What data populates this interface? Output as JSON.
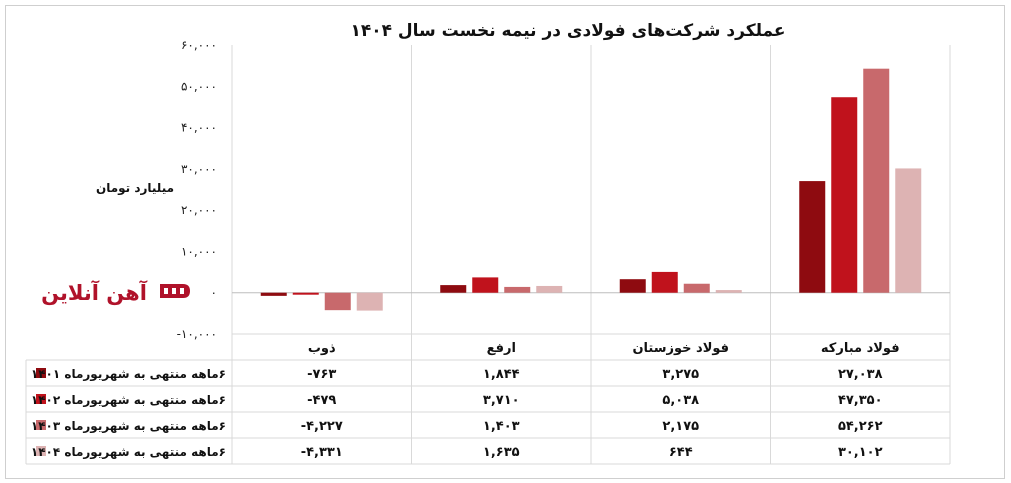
{
  "colors": {
    "series": [
      "#8e0b10",
      "#c0121c",
      "#c8696c",
      "#ddb3b3"
    ],
    "logo": "#b0122a"
  },
  "logo": {
    "text": "آهن آنلاین",
    "icon": "ahan-online-logo-icon"
  },
  "unit_label": "میلیارد تومان",
  "chart_data": {
    "type": "bar",
    "title": "عملکرد شرکت‌های فولادی در نیمه نخست سال ۱۴۰۴",
    "ylabel": "میلیارد تومان",
    "ylim": [
      -10000,
      60000
    ],
    "yticks": [
      -10000,
      0,
      10000,
      20000,
      30000,
      40000,
      50000,
      60000
    ],
    "ytick_labels": [
      "-۱۰,۰۰۰",
      "۰",
      "۱۰,۰۰۰",
      "۲۰,۰۰۰",
      "۳۰,۰۰۰",
      "۴۰,۰۰۰",
      "۵۰,۰۰۰",
      "۶۰,۰۰۰"
    ],
    "grid": true,
    "legend": "table-left",
    "categories": [
      "فولاد مبارکه",
      "فولاد خوزستان",
      "ارفع",
      "ذوب"
    ],
    "series": [
      {
        "name": "۶ماهه منتهی به شهریورماه ۱۴۰۱",
        "values": [
          27038,
          3275,
          1844,
          -763
        ],
        "labels": [
          "۲۷,۰۳۸",
          "۳,۲۷۵",
          "۱,۸۴۴",
          "-۷۶۳"
        ]
      },
      {
        "name": "۶ماهه منتهی به شهریورماه ۱۴۰۲",
        "values": [
          47350,
          5038,
          3710,
          -479
        ],
        "labels": [
          "۴۷,۳۵۰",
          "۵,۰۳۸",
          "۳,۷۱۰",
          "-۴۷۹"
        ]
      },
      {
        "name": "۶ماهه منتهی به شهریورماه ۱۴۰۳",
        "values": [
          54262,
          2175,
          1403,
          -4227
        ],
        "labels": [
          "۵۴,۲۶۲",
          "۲,۱۷۵",
          "۱,۴۰۳",
          "-۴,۲۲۷"
        ]
      },
      {
        "name": "۶ماهه منتهی به شهریورماه ۱۴۰۴",
        "values": [
          30102,
          644,
          1635,
          -4331
        ],
        "labels": [
          "۳۰,۱۰۲",
          "۶۴۴",
          "۱,۶۳۵",
          "-۴,۳۳۱"
        ]
      }
    ]
  }
}
